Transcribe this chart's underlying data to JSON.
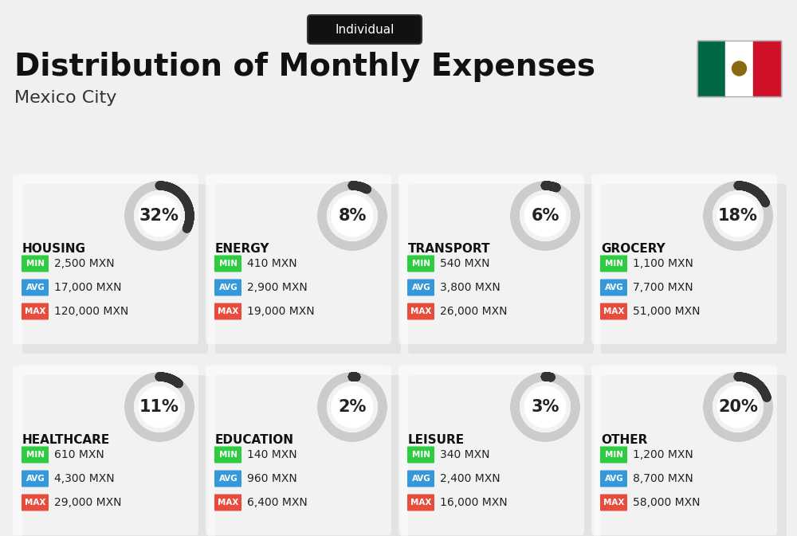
{
  "title": "Distribution of Monthly Expenses",
  "subtitle": "Mexico City",
  "tag": "Individual",
  "bg_color": "#f0f0f0",
  "categories": [
    {
      "name": "HOUSING",
      "pct": 32,
      "min": "2,500 MXN",
      "avg": "17,000 MXN",
      "max": "120,000 MXN",
      "row": 0,
      "col": 0
    },
    {
      "name": "ENERGY",
      "pct": 8,
      "min": "410 MXN",
      "avg": "2,900 MXN",
      "max": "19,000 MXN",
      "row": 0,
      "col": 1
    },
    {
      "name": "TRANSPORT",
      "pct": 6,
      "min": "540 MXN",
      "avg": "3,800 MXN",
      "max": "26,000 MXN",
      "row": 0,
      "col": 2
    },
    {
      "name": "GROCERY",
      "pct": 18,
      "min": "1,100 MXN",
      "avg": "7,700 MXN",
      "max": "51,000 MXN",
      "row": 0,
      "col": 3
    },
    {
      "name": "HEALTHCARE",
      "pct": 11,
      "min": "610 MXN",
      "avg": "4,300 MXN",
      "max": "29,000 MXN",
      "row": 1,
      "col": 0
    },
    {
      "name": "EDUCATION",
      "pct": 2,
      "min": "140 MXN",
      "avg": "960 MXN",
      "max": "6,400 MXN",
      "row": 1,
      "col": 1
    },
    {
      "name": "LEISURE",
      "pct": 3,
      "min": "340 MXN",
      "avg": "2,400 MXN",
      "max": "16,000 MXN",
      "row": 1,
      "col": 2
    },
    {
      "name": "OTHER",
      "pct": 20,
      "min": "1,200 MXN",
      "avg": "8,700 MXN",
      "max": "58,000 MXN",
      "row": 1,
      "col": 3
    }
  ],
  "color_min": "#2ecc40",
  "color_avg": "#3498db",
  "color_max": "#e74c3c",
  "donut_filled": "#333333",
  "donut_empty": "#cccccc",
  "title_fontsize": 28,
  "subtitle_fontsize": 16,
  "cat_fontsize": 11,
  "val_fontsize": 10,
  "pct_fontsize": 15,
  "tag_fontsize": 11
}
